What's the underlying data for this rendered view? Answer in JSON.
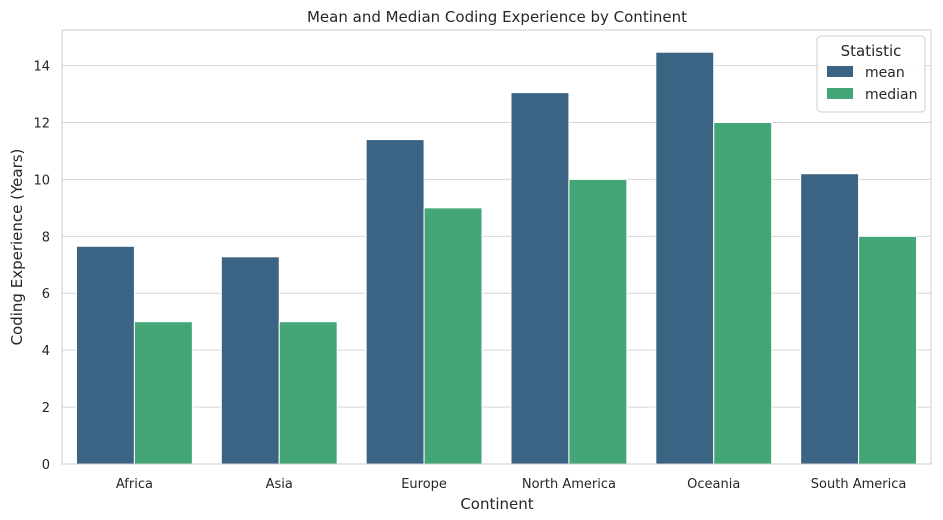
{
  "chart_data": {
    "type": "bar",
    "title": "Mean and Median Coding Experience by Continent",
    "xlabel": "Continent",
    "ylabel": "Coding Experience (Years)",
    "categories": [
      "Africa",
      "Asia",
      "Europe",
      "North America",
      "Oceania",
      "South America"
    ],
    "series": [
      {
        "name": "mean",
        "color": "#3b6484",
        "values": [
          7.65,
          7.28,
          11.4,
          13.05,
          14.47,
          10.2
        ]
      },
      {
        "name": "median",
        "color": "#44a676",
        "values": [
          5,
          5,
          9,
          10,
          12,
          8
        ]
      }
    ],
    "ylim": [
      0,
      15.25
    ],
    "yticks": [
      0,
      2,
      4,
      6,
      8,
      10,
      12,
      14
    ],
    "grid": true,
    "legend": {
      "title": "Statistic",
      "position": "top-right"
    }
  }
}
